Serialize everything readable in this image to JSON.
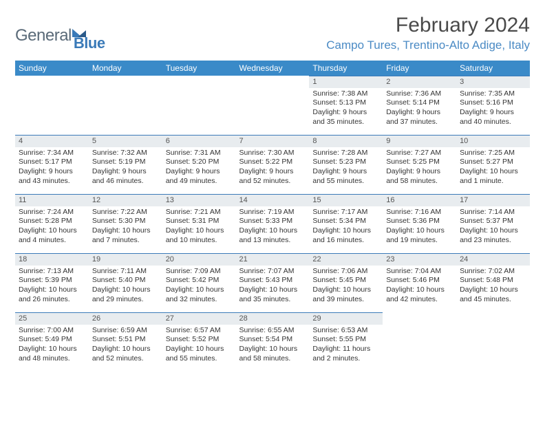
{
  "logo": {
    "text1": "General",
    "text2": "Blue"
  },
  "title": "February 2024",
  "location": "Campo Tures, Trentino-Alto Adige, Italy",
  "colors": {
    "header_bg": "#3a8ac8",
    "header_text": "#ffffff",
    "daynum_bg": "#e8ecef",
    "daynum_border": "#3a7ab8",
    "logo_gray": "#5a6a78",
    "logo_blue": "#3a7ab8",
    "location_color": "#4a8ac4"
  },
  "weekdays": [
    "Sunday",
    "Monday",
    "Tuesday",
    "Wednesday",
    "Thursday",
    "Friday",
    "Saturday"
  ],
  "weeks": [
    [
      null,
      null,
      null,
      null,
      {
        "n": "1",
        "sr": "Sunrise: 7:38 AM",
        "ss": "Sunset: 5:13 PM",
        "dl": "Daylight: 9 hours and 35 minutes."
      },
      {
        "n": "2",
        "sr": "Sunrise: 7:36 AM",
        "ss": "Sunset: 5:14 PM",
        "dl": "Daylight: 9 hours and 37 minutes."
      },
      {
        "n": "3",
        "sr": "Sunrise: 7:35 AM",
        "ss": "Sunset: 5:16 PM",
        "dl": "Daylight: 9 hours and 40 minutes."
      }
    ],
    [
      {
        "n": "4",
        "sr": "Sunrise: 7:34 AM",
        "ss": "Sunset: 5:17 PM",
        "dl": "Daylight: 9 hours and 43 minutes."
      },
      {
        "n": "5",
        "sr": "Sunrise: 7:32 AM",
        "ss": "Sunset: 5:19 PM",
        "dl": "Daylight: 9 hours and 46 minutes."
      },
      {
        "n": "6",
        "sr": "Sunrise: 7:31 AM",
        "ss": "Sunset: 5:20 PM",
        "dl": "Daylight: 9 hours and 49 minutes."
      },
      {
        "n": "7",
        "sr": "Sunrise: 7:30 AM",
        "ss": "Sunset: 5:22 PM",
        "dl": "Daylight: 9 hours and 52 minutes."
      },
      {
        "n": "8",
        "sr": "Sunrise: 7:28 AM",
        "ss": "Sunset: 5:23 PM",
        "dl": "Daylight: 9 hours and 55 minutes."
      },
      {
        "n": "9",
        "sr": "Sunrise: 7:27 AM",
        "ss": "Sunset: 5:25 PM",
        "dl": "Daylight: 9 hours and 58 minutes."
      },
      {
        "n": "10",
        "sr": "Sunrise: 7:25 AM",
        "ss": "Sunset: 5:27 PM",
        "dl": "Daylight: 10 hours and 1 minute."
      }
    ],
    [
      {
        "n": "11",
        "sr": "Sunrise: 7:24 AM",
        "ss": "Sunset: 5:28 PM",
        "dl": "Daylight: 10 hours and 4 minutes."
      },
      {
        "n": "12",
        "sr": "Sunrise: 7:22 AM",
        "ss": "Sunset: 5:30 PM",
        "dl": "Daylight: 10 hours and 7 minutes."
      },
      {
        "n": "13",
        "sr": "Sunrise: 7:21 AM",
        "ss": "Sunset: 5:31 PM",
        "dl": "Daylight: 10 hours and 10 minutes."
      },
      {
        "n": "14",
        "sr": "Sunrise: 7:19 AM",
        "ss": "Sunset: 5:33 PM",
        "dl": "Daylight: 10 hours and 13 minutes."
      },
      {
        "n": "15",
        "sr": "Sunrise: 7:17 AM",
        "ss": "Sunset: 5:34 PM",
        "dl": "Daylight: 10 hours and 16 minutes."
      },
      {
        "n": "16",
        "sr": "Sunrise: 7:16 AM",
        "ss": "Sunset: 5:36 PM",
        "dl": "Daylight: 10 hours and 19 minutes."
      },
      {
        "n": "17",
        "sr": "Sunrise: 7:14 AM",
        "ss": "Sunset: 5:37 PM",
        "dl": "Daylight: 10 hours and 23 minutes."
      }
    ],
    [
      {
        "n": "18",
        "sr": "Sunrise: 7:13 AM",
        "ss": "Sunset: 5:39 PM",
        "dl": "Daylight: 10 hours and 26 minutes."
      },
      {
        "n": "19",
        "sr": "Sunrise: 7:11 AM",
        "ss": "Sunset: 5:40 PM",
        "dl": "Daylight: 10 hours and 29 minutes."
      },
      {
        "n": "20",
        "sr": "Sunrise: 7:09 AM",
        "ss": "Sunset: 5:42 PM",
        "dl": "Daylight: 10 hours and 32 minutes."
      },
      {
        "n": "21",
        "sr": "Sunrise: 7:07 AM",
        "ss": "Sunset: 5:43 PM",
        "dl": "Daylight: 10 hours and 35 minutes."
      },
      {
        "n": "22",
        "sr": "Sunrise: 7:06 AM",
        "ss": "Sunset: 5:45 PM",
        "dl": "Daylight: 10 hours and 39 minutes."
      },
      {
        "n": "23",
        "sr": "Sunrise: 7:04 AM",
        "ss": "Sunset: 5:46 PM",
        "dl": "Daylight: 10 hours and 42 minutes."
      },
      {
        "n": "24",
        "sr": "Sunrise: 7:02 AM",
        "ss": "Sunset: 5:48 PM",
        "dl": "Daylight: 10 hours and 45 minutes."
      }
    ],
    [
      {
        "n": "25",
        "sr": "Sunrise: 7:00 AM",
        "ss": "Sunset: 5:49 PM",
        "dl": "Daylight: 10 hours and 48 minutes."
      },
      {
        "n": "26",
        "sr": "Sunrise: 6:59 AM",
        "ss": "Sunset: 5:51 PM",
        "dl": "Daylight: 10 hours and 52 minutes."
      },
      {
        "n": "27",
        "sr": "Sunrise: 6:57 AM",
        "ss": "Sunset: 5:52 PM",
        "dl": "Daylight: 10 hours and 55 minutes."
      },
      {
        "n": "28",
        "sr": "Sunrise: 6:55 AM",
        "ss": "Sunset: 5:54 PM",
        "dl": "Daylight: 10 hours and 58 minutes."
      },
      {
        "n": "29",
        "sr": "Sunrise: 6:53 AM",
        "ss": "Sunset: 5:55 PM",
        "dl": "Daylight: 11 hours and 2 minutes."
      },
      null,
      null
    ]
  ]
}
